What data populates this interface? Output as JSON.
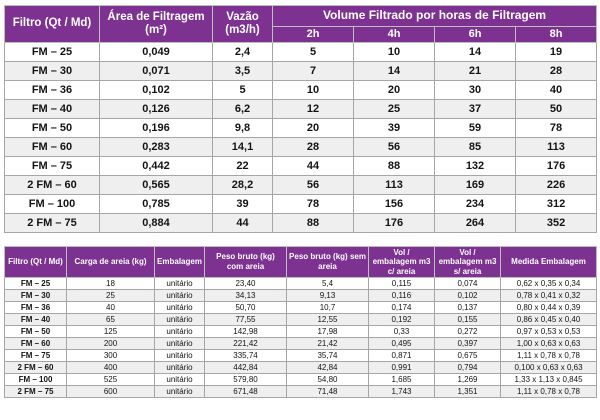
{
  "colors": {
    "header_bg": "#7d3190",
    "header_text": "#ffffff",
    "row_alt_bg": "#efefef",
    "border": "#a6a6a6"
  },
  "filtration_table": {
    "headers": {
      "filtro": "Filtro (Qt / Md)",
      "area": "Área de Filtragem (m²)",
      "vazao": "Vazão (m3/h)",
      "volume_group": "Volume Filtrado por horas de Filtragem",
      "hours": [
        "2h",
        "4h",
        "6h",
        "8h"
      ]
    },
    "rows": [
      [
        "FM – 25",
        "0,049",
        "2,4",
        "5",
        "10",
        "14",
        "19"
      ],
      [
        "FM – 30",
        "0,071",
        "3,5",
        "7",
        "14",
        "21",
        "28"
      ],
      [
        "FM – 36",
        "0,102",
        "5",
        "10",
        "20",
        "30",
        "40"
      ],
      [
        "FM – 40",
        "0,126",
        "6,2",
        "12",
        "25",
        "37",
        "50"
      ],
      [
        "FM – 50",
        "0,196",
        "9,8",
        "20",
        "39",
        "59",
        "78"
      ],
      [
        "FM – 60",
        "0,283",
        "14,1",
        "28",
        "56",
        "85",
        "113"
      ],
      [
        "FM – 75",
        "0,442",
        "22",
        "44",
        "88",
        "132",
        "176"
      ],
      [
        "2 FM – 60",
        "0,565",
        "28,2",
        "56",
        "113",
        "169",
        "226"
      ],
      [
        "FM – 100",
        "0,785",
        "39",
        "78",
        "156",
        "234",
        "312"
      ],
      [
        "2 FM – 75",
        "0,884",
        "44",
        "88",
        "176",
        "264",
        "352"
      ]
    ]
  },
  "packaging_table": {
    "headers": [
      "Filtro (Qt / Md)",
      "Carga de areia (kg)",
      "Embalagem",
      "Peso bruto (kg) com areia",
      "Peso bruto (kg) sem areia",
      "Vol / embalagem m3 c/ areia",
      "Vol / embalagem m3 s/ areia",
      "Medida Embalagem"
    ],
    "rows": [
      [
        "FM – 25",
        "18",
        "unitário",
        "23,40",
        "5,4",
        "0,115",
        "0,074",
        "0,62 x 0,35 x 0,34"
      ],
      [
        "FM – 30",
        "25",
        "unitário",
        "34,13",
        "9,13",
        "0,116",
        "0,102",
        "0,78 x 0,41 x 0,32"
      ],
      [
        "FM – 36",
        "40",
        "unitário",
        "50,70",
        "10,7",
        "0,174",
        "0,137",
        "0,80 x 0,44 x 0,39"
      ],
      [
        "FM – 40",
        "65",
        "unitário",
        "77,55",
        "12,55",
        "0,192",
        "0,155",
        "0,86 x 0,45 x 0,40"
      ],
      [
        "FM – 50",
        "125",
        "unitário",
        "142,98",
        "17,98",
        "0,33",
        "0,272",
        "0,97 x 0,53 x 0,53"
      ],
      [
        "FM – 60",
        "200",
        "unitário",
        "221,42",
        "21,42",
        "0,495",
        "0,397",
        "1,00 x 0,63 x 0,63"
      ],
      [
        "FM – 75",
        "300",
        "unitário",
        "335,74",
        "35,74",
        "0,871",
        "0,675",
        "1,11 x 0,78 x 0,78"
      ],
      [
        "2 FM – 60",
        "400",
        "unitário",
        "442,84",
        "42,84",
        "0,991",
        "0,794",
        "0,100 x 0,63 x 0,63"
      ],
      [
        "FM – 100",
        "525",
        "unitário",
        "579,80",
        "54,80",
        "1,685",
        "1,269",
        "1,33 x 1,13 x 0,845"
      ],
      [
        "2 FM – 75",
        "600",
        "unitário",
        "671,48",
        "71,48",
        "1,743",
        "1,351",
        "1,11 x 0,78 x 0,78"
      ]
    ]
  }
}
